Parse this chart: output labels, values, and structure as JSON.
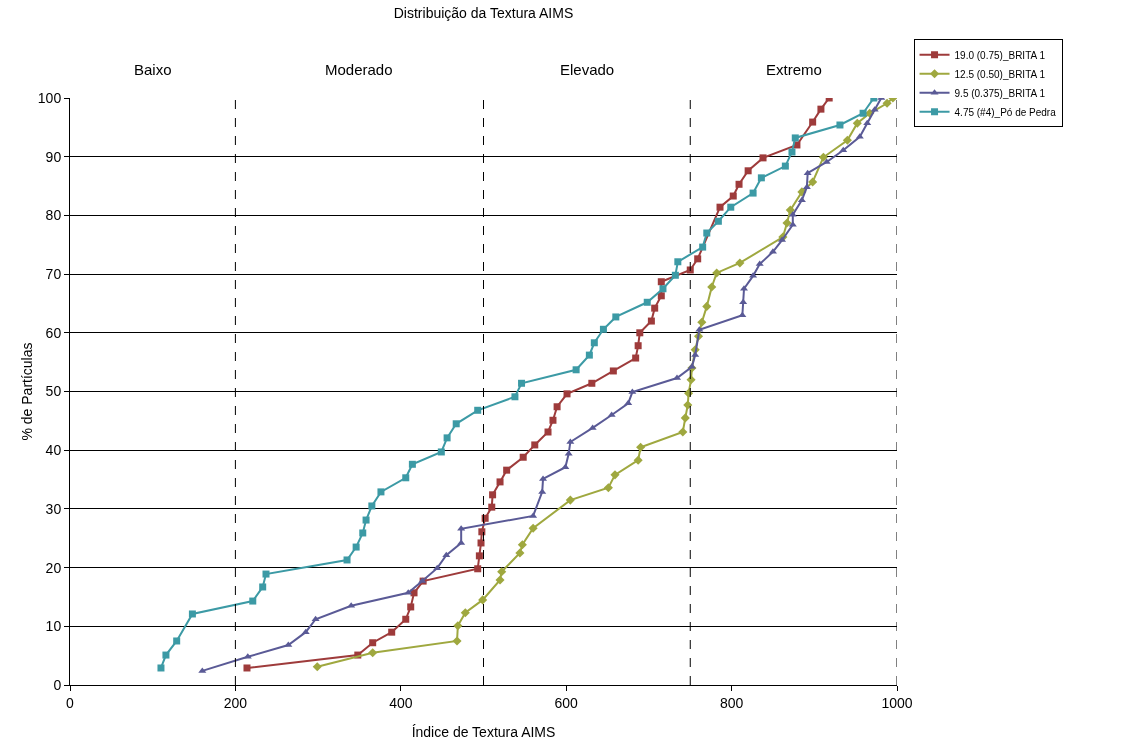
{
  "chart_data": {
    "type": "line",
    "title": "Distribuição da Textura AIMS",
    "xlabel": "Índice de Textura AIMS",
    "ylabel": "% de Partículas",
    "xlim": [
      0,
      1000
    ],
    "xticks": [
      0,
      200,
      400,
      600,
      800,
      1000
    ],
    "ylim": [
      0,
      100
    ],
    "yticks": [
      0,
      10,
      20,
      30,
      40,
      50,
      60,
      70,
      80,
      90,
      100
    ],
    "grid": "y",
    "legend": "top right",
    "line_style": "solid",
    "annotations": [
      "Baixo",
      "Moderado",
      "Elevado",
      "Extremo"
    ],
    "ref_lines": [
      {
        "axis": "x",
        "value": 200,
        "color": "#000000",
        "line_style": "dashed"
      },
      {
        "axis": "x",
        "value": 500,
        "color": "#000000",
        "line_style": "dashed"
      },
      {
        "axis": "x",
        "value": 750,
        "color": "#000000",
        "line_style": "dashed"
      },
      {
        "axis": "x",
        "value": 1000,
        "color": "#000000",
        "line_style": "dashed"
      }
    ],
    "series": [
      {
        "name": "19.0 (0.75)_BRITA 1",
        "color": "#9e3b3b",
        "marker": "square",
        "x": [
          214,
          348,
          366,
          389,
          406,
          412,
          416,
          427,
          493,
          495,
          497,
          498,
          502,
          510,
          511,
          520,
          528,
          548,
          562,
          578,
          584,
          589,
          601,
          631,
          657,
          684,
          687,
          689,
          703,
          707,
          715,
          715,
          750,
          759,
          786,
          802,
          809,
          820,
          838,
          879,
          898,
          908,
          918
        ],
        "values": [
          2.9,
          5.1,
          7.2,
          9.0,
          11.2,
          13.3,
          15.7,
          17.7,
          19.8,
          22.0,
          24.2,
          26.1,
          28.4,
          30.3,
          32.4,
          34.6,
          36.6,
          38.8,
          40.9,
          43.1,
          45.1,
          47.4,
          49.6,
          51.4,
          53.5,
          55.7,
          57.8,
          60.0,
          62.0,
          64.2,
          66.3,
          68.7,
          70.7,
          72.6,
          81.4,
          83.3,
          85.3,
          87.6,
          89.8,
          92.0,
          95.9,
          98.1,
          100
        ]
      },
      {
        "name": "12.5 (0.50)_BRITA 1",
        "color": "#9fa83f",
        "marker": "diamond",
        "x": [
          299,
          366,
          468,
          469,
          478,
          499,
          520,
          522,
          544,
          547,
          560,
          605,
          651,
          659,
          687,
          690,
          741,
          744,
          747,
          748,
          751,
          752,
          756,
          760,
          764,
          770,
          776,
          782,
          810,
          862,
          867,
          871,
          885,
          898,
          911,
          940,
          952,
          967,
          988,
          995
        ],
        "values": [
          3.1,
          5.5,
          7.5,
          10.1,
          12.3,
          14.5,
          17.9,
          19.3,
          22.5,
          23.9,
          26.7,
          31.5,
          33.6,
          35.8,
          38.3,
          40.5,
          43.1,
          45.5,
          47.7,
          49.7,
          52.0,
          54.0,
          57.1,
          59.4,
          61.8,
          64.5,
          67.8,
          70.2,
          71.9,
          76.3,
          78.7,
          80.9,
          84.0,
          85.7,
          89.9,
          92.8,
          95.7,
          97.4,
          99.1,
          100
        ]
      },
      {
        "name": "9.5 (0.375)_BRITA 1",
        "color": "#5a5a96",
        "marker": "triangle",
        "x": [
          160,
          215,
          264,
          285,
          297,
          340,
          409,
          426,
          444,
          455,
          473,
          473,
          560,
          571,
          572,
          599,
          603,
          605,
          632,
          655,
          675,
          680,
          734,
          752,
          756,
          761,
          813,
          814,
          815,
          826,
          834,
          850,
          861,
          874,
          874,
          885,
          891,
          892,
          915,
          935,
          955,
          964,
          973,
          981
        ],
        "values": [
          2.4,
          4.8,
          6.8,
          9.0,
          11.2,
          13.5,
          15.7,
          17.7,
          19.9,
          22.1,
          24.2,
          26.6,
          28.8,
          32.9,
          35.1,
          37.1,
          39.4,
          41.4,
          43.8,
          46.0,
          48.0,
          49.9,
          52.3,
          54.2,
          56.2,
          60.5,
          63.0,
          65.2,
          67.5,
          69.7,
          71.7,
          73.8,
          75.8,
          78.4,
          80.1,
          82.6,
          84.8,
          87.2,
          89.1,
          91.1,
          93.4,
          95.7,
          98.0,
          100
        ]
      },
      {
        "name": "4.75 (#4)_Pó de Pedra",
        "color": "#3c9aa5",
        "marker": "square",
        "x": [
          110,
          116,
          129,
          148,
          221,
          233,
          237,
          335,
          346,
          354,
          358,
          365,
          376,
          406,
          414,
          449,
          456,
          467,
          493,
          538,
          546,
          612,
          628,
          634,
          645,
          660,
          698,
          717,
          732,
          735,
          765,
          770,
          784,
          799,
          826,
          836,
          865,
          873,
          877,
          931,
          959,
          972
        ],
        "values": [
          2.9,
          5.1,
          7.5,
          12.1,
          14.3,
          16.7,
          18.9,
          21.3,
          23.5,
          25.9,
          28.1,
          30.5,
          32.9,
          35.3,
          37.6,
          39.7,
          42.1,
          44.5,
          46.8,
          49.1,
          51.4,
          53.7,
          56.2,
          58.3,
          60.6,
          62.7,
          65.2,
          67.5,
          69.8,
          72.1,
          74.6,
          77.0,
          79.0,
          81.4,
          83.8,
          86.4,
          88.4,
          90.8,
          93.2,
          95.4,
          97.4,
          100
        ]
      }
    ]
  }
}
